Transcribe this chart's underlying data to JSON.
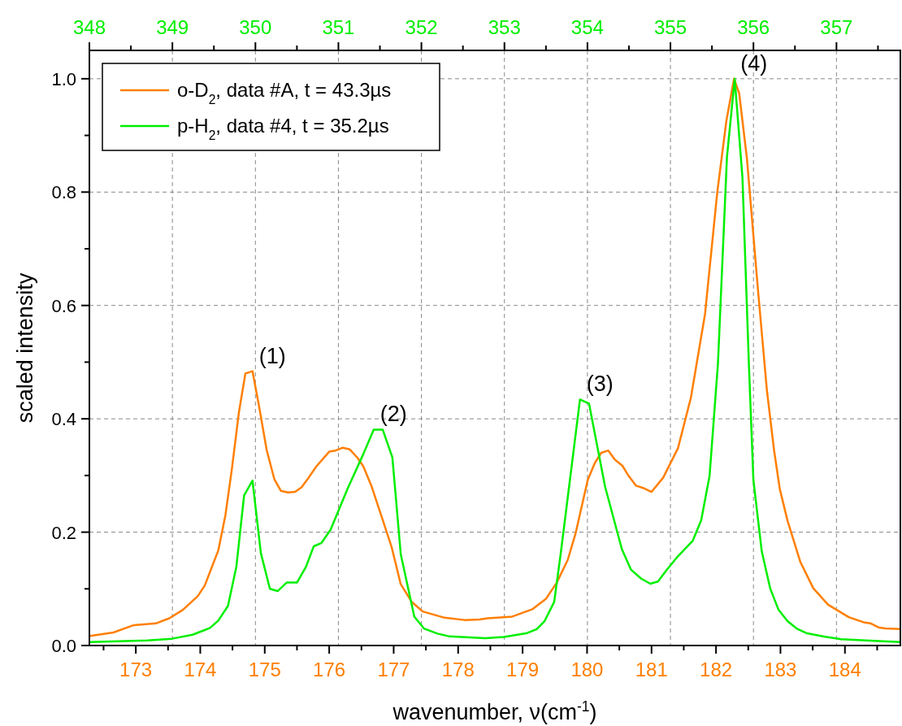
{
  "chart_data": {
    "type": "line",
    "xlabel": "wavenumber, ν(cm$^{-1}$)",
    "ylabel": "scaled intensity",
    "xlim": [
      172.28,
      184.86
    ],
    "xticks": [
      {
        "value": 172.5,
        "label": null
      },
      173,
      {
        "value": 173.5,
        "label": null
      },
      174,
      {
        "value": 174.5,
        "label": null
      },
      175,
      {
        "value": 175.5,
        "label": null
      },
      176,
      {
        "value": 176.5,
        "label": null
      },
      177,
      {
        "value": 177.5,
        "label": null
      },
      178,
      {
        "value": 178.5,
        "label": null
      },
      179,
      {
        "value": 179.5,
        "label": null
      },
      180,
      {
        "value": 180.5,
        "label": null
      },
      181,
      {
        "value": 181.5,
        "label": null
      },
      182,
      {
        "value": 182.5,
        "label": null
      },
      183,
      {
        "value": 183.5,
        "label": null
      },
      184,
      {
        "value": 184.5,
        "label": null
      }
    ],
    "x2lim": [
      348,
      357.77
    ],
    "x2ticks": [
      348,
      {
        "value": 348.5,
        "label": null
      },
      349,
      {
        "value": 349.5,
        "label": null
      },
      350,
      {
        "value": 350.5,
        "label": null
      },
      351,
      {
        "value": 351.5,
        "label": null
      },
      352,
      {
        "value": 352.5,
        "label": null
      },
      353,
      {
        "value": 353.5,
        "label": null
      },
      354,
      {
        "value": 354.5,
        "label": null
      },
      355,
      {
        "value": 355.5,
        "label": null
      },
      356,
      {
        "value": 356.5,
        "label": null
      },
      357,
      {
        "value": 357.5,
        "label": null
      }
    ],
    "ylim": [
      0,
      1.05
    ],
    "yticks": [
      {
        "value": 0,
        "label": "0.0"
      },
      {
        "value": 0.1,
        "label": null
      },
      {
        "value": 0.2,
        "label": "0.2"
      },
      {
        "value": 0.3,
        "label": null
      },
      {
        "value": 0.4,
        "label": "0.4"
      },
      {
        "value": 0.5,
        "label": null
      },
      {
        "value": 0.6,
        "label": "0.6"
      },
      {
        "value": 0.7,
        "label": null
      },
      {
        "value": 0.8,
        "label": "0.8"
      },
      {
        "value": 0.9,
        "label": null
      },
      {
        "value": 1.0,
        "label": "1.0"
      }
    ],
    "grid": true,
    "legend": "top left",
    "line_style": "solid",
    "series": [
      {
        "name": "o-D$_{2}$, data #A, t = 43.3µs",
        "color": "#ff7f00",
        "x": [
          172.29,
          172.65,
          172.97,
          173.31,
          173.52,
          173.73,
          173.96,
          174.07,
          174.28,
          174.39,
          174.49,
          174.6,
          174.7,
          174.81,
          174.92,
          175.03,
          175.15,
          175.25,
          175.36,
          175.47,
          175.57,
          175.68,
          175.8,
          176.0,
          176.1,
          176.21,
          176.32,
          176.44,
          176.53,
          176.66,
          176.82,
          176.97,
          177.11,
          177.28,
          177.45,
          177.79,
          178.1,
          178.33,
          178.46,
          178.84,
          179.15,
          179.36,
          179.53,
          179.7,
          179.82,
          180.01,
          180.12,
          180.22,
          180.33,
          180.43,
          180.55,
          180.64,
          180.76,
          180.87,
          181.0,
          181.18,
          181.41,
          181.61,
          181.83,
          182.02,
          182.16,
          182.28,
          182.36,
          182.48,
          182.65,
          182.79,
          182.9,
          182.99,
          183.11,
          183.31,
          183.51,
          183.74,
          184.06,
          184.29,
          184.4,
          184.52,
          184.63,
          184.86
        ],
        "values": [
          0.017,
          0.023,
          0.036,
          0.039,
          0.048,
          0.063,
          0.087,
          0.106,
          0.168,
          0.23,
          0.311,
          0.412,
          0.48,
          0.484,
          0.417,
          0.345,
          0.293,
          0.273,
          0.27,
          0.271,
          0.279,
          0.296,
          0.316,
          0.342,
          0.344,
          0.349,
          0.346,
          0.331,
          0.316,
          0.28,
          0.225,
          0.173,
          0.108,
          0.077,
          0.06,
          0.049,
          0.045,
          0.046,
          0.048,
          0.051,
          0.064,
          0.082,
          0.111,
          0.151,
          0.197,
          0.292,
          0.322,
          0.34,
          0.344,
          0.328,
          0.317,
          0.3,
          0.282,
          0.278,
          0.271,
          0.296,
          0.348,
          0.437,
          0.585,
          0.8,
          0.925,
          1.0,
          0.974,
          0.859,
          0.629,
          0.45,
          0.345,
          0.276,
          0.22,
          0.147,
          0.101,
          0.072,
          0.05,
          0.041,
          0.039,
          0.032,
          0.03,
          0.029
        ]
      },
      {
        "name": "p-H$_{2}$, data #4, t = 35.2µs",
        "color": "#00ee00",
        "x": [
          172.29,
          173.18,
          173.56,
          173.88,
          174.15,
          174.28,
          174.43,
          174.56,
          174.68,
          174.81,
          174.94,
          175.08,
          175.2,
          175.34,
          175.5,
          175.64,
          175.76,
          175.88,
          176.02,
          176.29,
          176.53,
          176.69,
          176.83,
          176.98,
          177.11,
          177.32,
          177.47,
          177.68,
          177.87,
          178.42,
          178.71,
          179.07,
          179.22,
          179.34,
          179.49,
          179.59,
          179.89,
          180.03,
          180.28,
          180.54,
          180.68,
          180.84,
          180.98,
          181.1,
          181.24,
          181.39,
          181.64,
          181.77,
          181.9,
          182.03,
          182.17,
          182.29,
          182.41,
          182.51,
          182.58,
          182.71,
          182.84,
          182.97,
          183.11,
          183.25,
          183.4,
          183.66,
          183.94,
          184.52,
          184.86
        ],
        "values": [
          0.006,
          0.009,
          0.012,
          0.019,
          0.031,
          0.044,
          0.07,
          0.139,
          0.265,
          0.291,
          0.163,
          0.1,
          0.096,
          0.111,
          0.111,
          0.139,
          0.175,
          0.181,
          0.204,
          0.278,
          0.338,
          0.381,
          0.381,
          0.332,
          0.161,
          0.051,
          0.03,
          0.021,
          0.016,
          0.013,
          0.015,
          0.022,
          0.029,
          0.043,
          0.077,
          0.161,
          0.434,
          0.427,
          0.28,
          0.17,
          0.134,
          0.118,
          0.109,
          0.113,
          0.134,
          0.155,
          0.185,
          0.221,
          0.299,
          0.497,
          0.862,
          1.0,
          0.826,
          0.497,
          0.292,
          0.166,
          0.101,
          0.063,
          0.043,
          0.03,
          0.022,
          0.016,
          0.011,
          0.008,
          0.006
        ]
      }
    ],
    "annotations": [
      {
        "text": "(1)",
        "x": 174.81,
        "y": 0.484
      },
      {
        "text": "(2)",
        "x": 176.69,
        "y": 0.381
      },
      {
        "text": "(3)",
        "x": 179.89,
        "y": 0.434
      },
      {
        "text": "(4)",
        "x": 182.28,
        "y": 1.0
      }
    ]
  }
}
